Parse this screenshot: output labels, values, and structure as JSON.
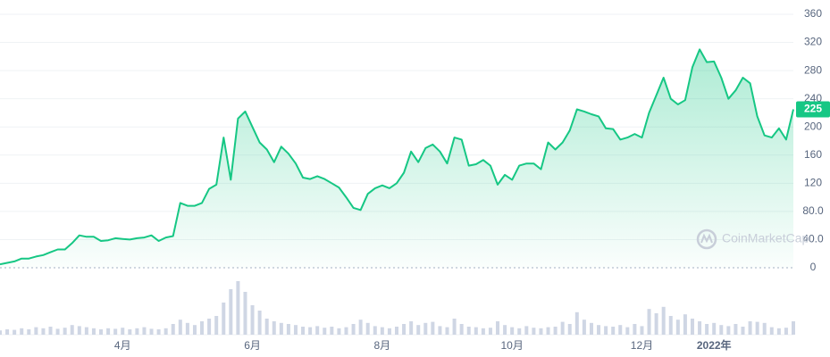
{
  "chart_data": {
    "type": "area",
    "watermark": "CoinMarketCap",
    "color": "#16c784",
    "volume_color": "#cfd6e4",
    "categories": [
      null,
      null,
      null,
      null,
      null,
      null,
      null,
      null,
      null,
      null,
      null,
      null,
      null,
      null,
      null,
      null,
      null,
      "4月",
      null,
      null,
      null,
      null,
      null,
      null,
      null,
      null,
      null,
      null,
      null,
      null,
      null,
      null,
      null,
      null,
      null,
      "6月",
      null,
      null,
      null,
      null,
      null,
      null,
      null,
      null,
      null,
      null,
      null,
      null,
      null,
      null,
      null,
      null,
      null,
      "8月",
      null,
      null,
      null,
      null,
      null,
      null,
      null,
      null,
      null,
      null,
      null,
      null,
      null,
      null,
      null,
      null,
      null,
      "10月",
      null,
      null,
      null,
      null,
      null,
      null,
      null,
      null,
      null,
      null,
      null,
      null,
      null,
      null,
      null,
      null,
      null,
      "12月",
      null,
      null,
      null,
      null,
      null,
      null,
      null,
      null,
      null,
      "2022年",
      null,
      null,
      null,
      null,
      null,
      null,
      null,
      null,
      null,
      null,
      null
    ],
    "values": [
      5,
      7,
      9,
      13,
      13,
      16,
      18,
      22,
      26,
      26,
      35,
      46,
      44,
      44,
      38,
      39,
      42,
      41,
      40,
      42,
      43,
      46,
      38,
      43,
      45,
      92,
      88,
      88,
      92,
      112,
      118,
      185,
      125,
      212,
      222,
      200,
      178,
      168,
      150,
      172,
      162,
      148,
      128,
      126,
      130,
      126,
      120,
      114,
      100,
      85,
      82,
      105,
      113,
      117,
      113,
      120,
      135,
      165,
      150,
      170,
      175,
      165,
      148,
      185,
      182,
      145,
      147,
      153,
      145,
      118,
      132,
      125,
      145,
      148,
      148,
      140,
      178,
      168,
      178,
      195,
      225,
      222,
      218,
      215,
      198,
      197,
      182,
      185,
      190,
      185,
      220,
      245,
      270,
      240,
      232,
      238,
      285,
      310,
      292,
      293,
      270,
      240,
      252,
      270,
      262,
      215,
      188,
      185,
      198,
      182,
      225
    ],
    "volume": {
      "values": [
        8,
        10,
        9,
        12,
        10,
        14,
        12,
        15,
        11,
        13,
        18,
        16,
        14,
        12,
        10,
        12,
        11,
        13,
        10,
        12,
        14,
        11,
        10,
        12,
        20,
        28,
        22,
        18,
        25,
        30,
        35,
        60,
        85,
        100,
        80,
        55,
        45,
        30,
        25,
        22,
        20,
        18,
        15,
        14,
        16,
        13,
        15,
        12,
        14,
        20,
        28,
        22,
        16,
        14,
        12,
        15,
        20,
        25,
        18,
        22,
        24,
        16,
        14,
        30,
        20,
        15,
        14,
        12,
        13,
        25,
        18,
        14,
        12,
        16,
        13,
        12,
        14,
        15,
        24,
        20,
        42,
        28,
        22,
        18,
        16,
        15,
        18,
        14,
        20,
        16,
        48,
        40,
        52,
        35,
        28,
        38,
        30,
        25,
        20,
        22,
        18,
        16,
        20,
        15,
        25,
        24,
        22,
        14,
        12,
        13,
        25
      ],
      "ylim": [
        0,
        100
      ]
    },
    "current_price": 225,
    "ylim": [
      0,
      360
    ],
    "yticks": [
      0,
      {
        "value": 40,
        "label": "40.0"
      },
      {
        "value": 80,
        "label": "80.0"
      },
      120,
      160,
      200,
      240,
      280,
      320,
      360
    ],
    "grid": true
  }
}
